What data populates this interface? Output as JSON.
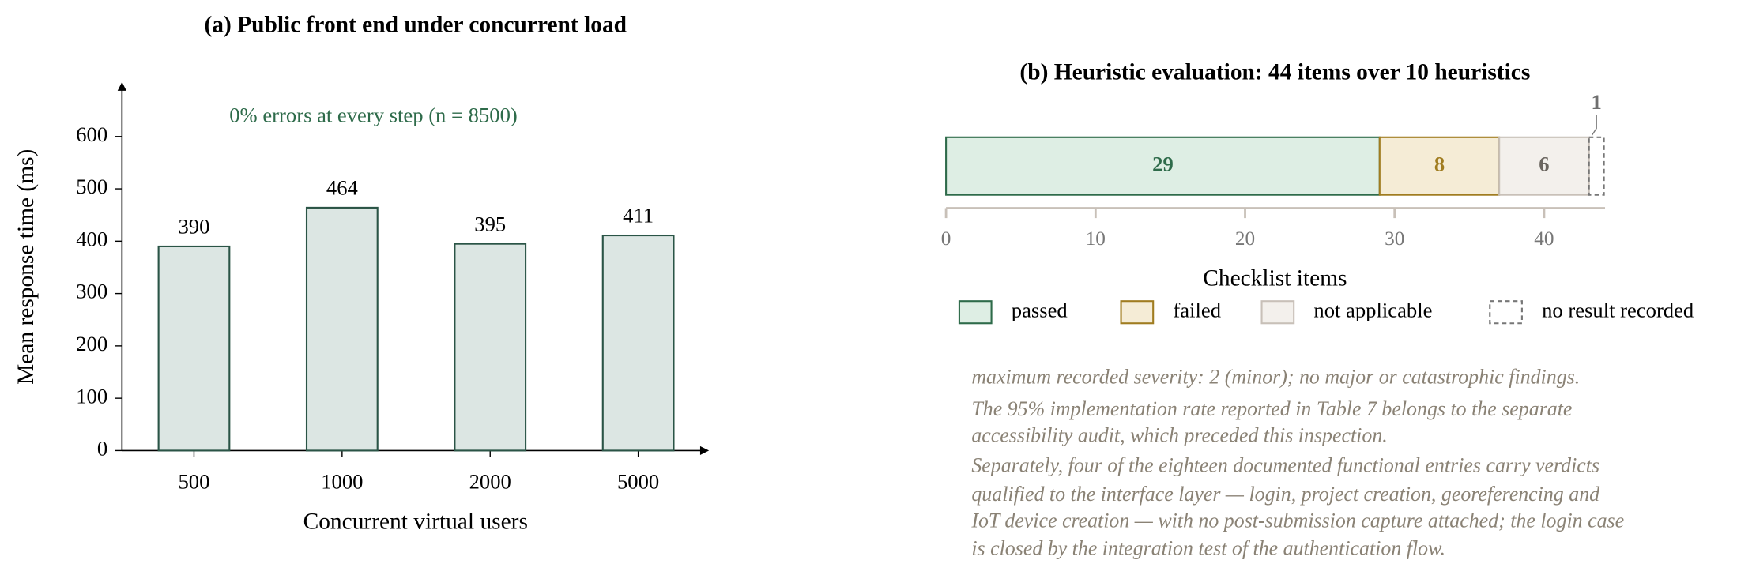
{
  "chart_data": [
    {
      "type": "bar",
      "title": "(a) Public front end under concurrent load",
      "annotation": "0% errors at every step (n = 8500)",
      "categories": [
        "500",
        "1000",
        "2000",
        "5000"
      ],
      "values": [
        390,
        464,
        395,
        411
      ],
      "color": "#dce6e3",
      "edge_color": "#2a5446",
      "xlabel": "Concurrent virtual users",
      "ylabel": "Mean response time (ms)",
      "ylim": [
        0,
        700
      ],
      "yticks": [
        0,
        100,
        200,
        300,
        400,
        500,
        600
      ]
    },
    {
      "type": "stacked-bar",
      "orientation": "horizontal",
      "title": "(b) Heuristic evaluation: 44 items over 10 heuristics",
      "series": [
        {
          "name": "passed",
          "values": [
            29
          ],
          "color": "#deeee4",
          "edge_color": "#2e6b4a"
        },
        {
          "name": "failed",
          "values": [
            8
          ],
          "color": "#f5ecd6",
          "edge_color": "#a07c20"
        },
        {
          "name": "not applicable",
          "values": [
            6
          ],
          "color": "#f3f0ec",
          "edge_color": "#c8c0b8"
        },
        {
          "name": "no result recorded",
          "values": [
            1
          ],
          "color": "none",
          "edge_color": "#777777"
        }
      ],
      "xlabel": "Checklist items",
      "xlim": [
        0,
        44
      ],
      "xticks": [
        0,
        10,
        20,
        30,
        40
      ]
    }
  ],
  "notes": [
    [
      "maximum recorded severity: 2 (minor); no major or catastrophic findings."
    ],
    [
      "The 95% implementation rate reported in Table 7 belongs to the separate",
      "accessibility audit, which preceded this inspection."
    ],
    [
      "Separately, four of the eighteen documented functional entries carry verdicts",
      "qualified to the interface layer — login, project creation, georeferencing and",
      "IoT device creation — with no post-submission capture attached; the login case",
      "is closed by the integration test of the authentication flow."
    ]
  ]
}
